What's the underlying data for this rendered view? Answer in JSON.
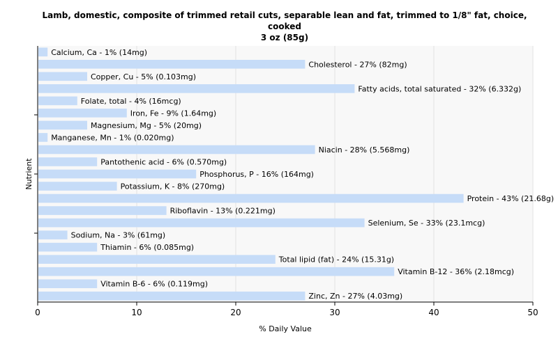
{
  "chart_data": {
    "type": "bar",
    "orientation": "horizontal",
    "title_line1": "Lamb, domestic, composite of trimmed retail cuts, separable lean and fat, trimmed to 1/8\" fat, choice, cooked",
    "title_line2": "3 oz (85g)",
    "xlabel": "% Daily Value",
    "ylabel": "Nutrient",
    "xlim": [
      0,
      50
    ],
    "xticks": [
      0,
      10,
      20,
      30,
      40,
      50
    ],
    "grid": true,
    "bar_color": "#c6dcf8",
    "categories": [
      "Calcium, Ca - 1% (14mg)",
      "Cholesterol - 27% (82mg)",
      "Copper, Cu - 5% (0.103mg)",
      "Fatty acids, total saturated - 32% (6.332g)",
      "Folate, total - 4% (16mcg)",
      "Iron, Fe - 9% (1.64mg)",
      "Magnesium, Mg - 5% (20mg)",
      "Manganese, Mn - 1% (0.020mg)",
      "Niacin - 28% (5.568mg)",
      "Pantothenic acid - 6% (0.570mg)",
      "Phosphorus, P - 16% (164mg)",
      "Potassium, K - 8% (270mg)",
      "Protein - 43% (21.68g)",
      "Riboflavin - 13% (0.221mg)",
      "Selenium, Se - 33% (23.1mcg)",
      "Sodium, Na - 3% (61mg)",
      "Thiamin - 6% (0.085mg)",
      "Total lipid (fat) - 24% (15.31g)",
      "Vitamin B-12 - 36% (2.18mcg)",
      "Vitamin B-6 - 6% (0.119mg)",
      "Zinc, Zn - 27% (4.03mg)"
    ],
    "values": [
      1,
      27,
      5,
      32,
      4,
      9,
      5,
      1,
      28,
      6,
      16,
      8,
      43,
      13,
      33,
      3,
      6,
      24,
      36,
      6,
      27
    ]
  }
}
